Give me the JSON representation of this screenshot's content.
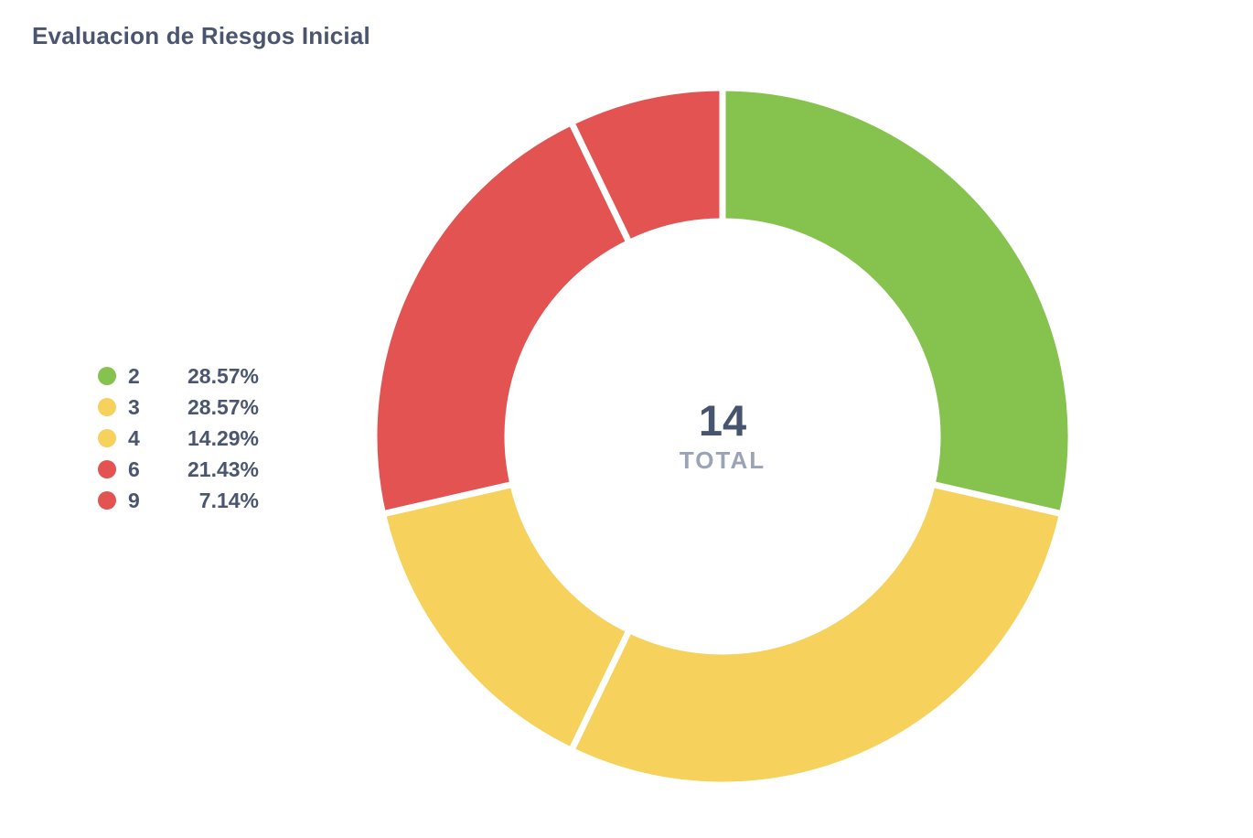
{
  "title": "Evaluacion de Riesgos Inicial",
  "center": {
    "total": "14",
    "label": "TOTAL"
  },
  "colors": {
    "green": "#85C24E",
    "yellow": "#F6D15C",
    "red": "#E25352",
    "title_text": "#4A5670",
    "total_text": "#475470",
    "total_label_text": "#9BA3B7",
    "background": "#FFFFFF"
  },
  "chart_data": {
    "type": "pie",
    "subtype": "donut",
    "title": "Evaluacion de Riesgos Inicial",
    "total": 14,
    "center_value": "14",
    "center_label": "TOTAL",
    "start_angle_deg": 0,
    "direction": "clockwise",
    "inner_radius_ratio": 0.617,
    "legend_position": "left",
    "segments": [
      {
        "label": "2",
        "count": 4,
        "percent_label": "28.57%",
        "percent": 28.57,
        "color": "#85C24E"
      },
      {
        "label": "3",
        "count": 4,
        "percent_label": "28.57%",
        "percent": 28.57,
        "color": "#F6D15C"
      },
      {
        "label": "4",
        "count": 2,
        "percent_label": "14.29%",
        "percent": 14.29,
        "color": "#F6D15C"
      },
      {
        "label": "6",
        "count": 3,
        "percent_label": "21.43%",
        "percent": 21.43,
        "color": "#E25352"
      },
      {
        "label": "9",
        "count": 1,
        "percent_label": "7.14%",
        "percent": 7.14,
        "color": "#E25352"
      }
    ]
  }
}
